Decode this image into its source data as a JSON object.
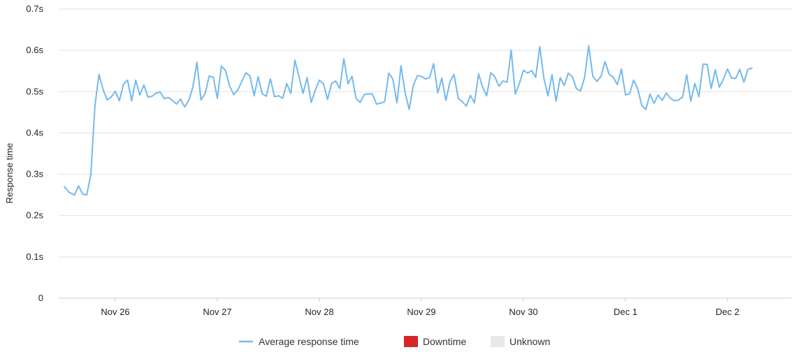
{
  "chart_data": {
    "type": "line",
    "ylabel": "Response time",
    "ylim": [
      0,
      0.7
    ],
    "y_ticks": [
      {
        "value": 0,
        "label": "0"
      },
      {
        "value": 0.1,
        "label": "0.1s"
      },
      {
        "value": 0.2,
        "label": "0.2s"
      },
      {
        "value": 0.3,
        "label": "0.3s"
      },
      {
        "value": 0.4,
        "label": "0.4s"
      },
      {
        "value": 0.5,
        "label": "0.5s"
      },
      {
        "value": 0.6,
        "label": "0.6s"
      },
      {
        "value": 0.7,
        "label": "0.7s"
      }
    ],
    "x_ticks": [
      {
        "day": 0,
        "label": "Nov 26"
      },
      {
        "day": 1,
        "label": "Nov 27"
      },
      {
        "day": 2,
        "label": "Nov 28"
      },
      {
        "day": 3,
        "label": "Nov 29"
      },
      {
        "day": 4,
        "label": "Nov 30"
      },
      {
        "day": 5,
        "label": "Dec 1"
      },
      {
        "day": 6,
        "label": "Dec 2"
      }
    ],
    "xlim": [
      -0.55,
      6.6
    ],
    "grid": true,
    "legend_position": "bottom",
    "series": [
      {
        "name": "Average response time",
        "color": "#74b9ee",
        "points": [
          [
            -0.5,
            0.27
          ],
          [
            -0.45,
            0.256
          ],
          [
            -0.4,
            0.25
          ],
          [
            -0.36,
            0.272
          ],
          [
            -0.32,
            0.252
          ],
          [
            -0.28,
            0.25
          ],
          [
            -0.24,
            0.3
          ],
          [
            -0.2,
            0.465
          ],
          [
            -0.16,
            0.542
          ],
          [
            -0.12,
            0.505
          ],
          [
            -0.08,
            0.48
          ],
          [
            -0.04,
            0.487
          ],
          [
            0.0,
            0.501
          ],
          [
            0.04,
            0.478
          ],
          [
            0.08,
            0.518
          ],
          [
            0.12,
            0.528
          ],
          [
            0.16,
            0.478
          ],
          [
            0.2,
            0.528
          ],
          [
            0.24,
            0.492
          ],
          [
            0.28,
            0.516
          ],
          [
            0.32,
            0.487
          ],
          [
            0.36,
            0.489
          ],
          [
            0.4,
            0.497
          ],
          [
            0.44,
            0.499
          ],
          [
            0.48,
            0.483
          ],
          [
            0.52,
            0.486
          ],
          [
            0.56,
            0.479
          ],
          [
            0.6,
            0.47
          ],
          [
            0.64,
            0.482
          ],
          [
            0.68,
            0.463
          ],
          [
            0.72,
            0.479
          ],
          [
            0.76,
            0.511
          ],
          [
            0.8,
            0.571
          ],
          [
            0.84,
            0.48
          ],
          [
            0.88,
            0.495
          ],
          [
            0.92,
            0.538
          ],
          [
            0.96,
            0.535
          ],
          [
            1.0,
            0.484
          ],
          [
            1.04,
            0.562
          ],
          [
            1.08,
            0.551
          ],
          [
            1.12,
            0.514
          ],
          [
            1.16,
            0.493
          ],
          [
            1.2,
            0.504
          ],
          [
            1.24,
            0.525
          ],
          [
            1.28,
            0.546
          ],
          [
            1.32,
            0.538
          ],
          [
            1.36,
            0.49
          ],
          [
            1.4,
            0.536
          ],
          [
            1.44,
            0.495
          ],
          [
            1.48,
            0.489
          ],
          [
            1.52,
            0.531
          ],
          [
            1.56,
            0.488
          ],
          [
            1.6,
            0.49
          ],
          [
            1.64,
            0.484
          ],
          [
            1.68,
            0.52
          ],
          [
            1.72,
            0.496
          ],
          [
            1.76,
            0.576
          ],
          [
            1.8,
            0.537
          ],
          [
            1.84,
            0.496
          ],
          [
            1.88,
            0.534
          ],
          [
            1.92,
            0.474
          ],
          [
            1.96,
            0.504
          ],
          [
            2.0,
            0.528
          ],
          [
            2.04,
            0.519
          ],
          [
            2.08,
            0.481
          ],
          [
            2.12,
            0.52
          ],
          [
            2.16,
            0.526
          ],
          [
            2.2,
            0.508
          ],
          [
            2.24,
            0.58
          ],
          [
            2.28,
            0.519
          ],
          [
            2.32,
            0.537
          ],
          [
            2.36,
            0.483
          ],
          [
            2.4,
            0.474
          ],
          [
            2.44,
            0.493
          ],
          [
            2.48,
            0.495
          ],
          [
            2.52,
            0.494
          ],
          [
            2.56,
            0.47
          ],
          [
            2.6,
            0.472
          ],
          [
            2.64,
            0.476
          ],
          [
            2.68,
            0.545
          ],
          [
            2.72,
            0.531
          ],
          [
            2.76,
            0.473
          ],
          [
            2.8,
            0.563
          ],
          [
            2.84,
            0.498
          ],
          [
            2.88,
            0.457
          ],
          [
            2.92,
            0.514
          ],
          [
            2.96,
            0.539
          ],
          [
            3.0,
            0.537
          ],
          [
            3.04,
            0.531
          ],
          [
            3.08,
            0.534
          ],
          [
            3.12,
            0.568
          ],
          [
            3.16,
            0.497
          ],
          [
            3.2,
            0.533
          ],
          [
            3.24,
            0.479
          ],
          [
            3.28,
            0.524
          ],
          [
            3.32,
            0.542
          ],
          [
            3.36,
            0.484
          ],
          [
            3.4,
            0.476
          ],
          [
            3.44,
            0.465
          ],
          [
            3.48,
            0.491
          ],
          [
            3.52,
            0.473
          ],
          [
            3.56,
            0.543
          ],
          [
            3.6,
            0.511
          ],
          [
            3.64,
            0.49
          ],
          [
            3.68,
            0.546
          ],
          [
            3.72,
            0.536
          ],
          [
            3.76,
            0.513
          ],
          [
            3.8,
            0.526
          ],
          [
            3.84,
            0.523
          ],
          [
            3.88,
            0.601
          ],
          [
            3.92,
            0.494
          ],
          [
            3.96,
            0.52
          ],
          [
            4.0,
            0.552
          ],
          [
            4.04,
            0.545
          ],
          [
            4.08,
            0.551
          ],
          [
            4.12,
            0.535
          ],
          [
            4.16,
            0.609
          ],
          [
            4.2,
            0.533
          ],
          [
            4.24,
            0.49
          ],
          [
            4.28,
            0.541
          ],
          [
            4.32,
            0.477
          ],
          [
            4.36,
            0.534
          ],
          [
            4.4,
            0.515
          ],
          [
            4.44,
            0.545
          ],
          [
            4.48,
            0.536
          ],
          [
            4.52,
            0.507
          ],
          [
            4.56,
            0.502
          ],
          [
            4.6,
            0.535
          ],
          [
            4.64,
            0.611
          ],
          [
            4.68,
            0.537
          ],
          [
            4.72,
            0.525
          ],
          [
            4.76,
            0.537
          ],
          [
            4.8,
            0.573
          ],
          [
            4.84,
            0.542
          ],
          [
            4.88,
            0.535
          ],
          [
            4.92,
            0.517
          ],
          [
            4.96,
            0.555
          ],
          [
            5.0,
            0.492
          ],
          [
            5.04,
            0.495
          ],
          [
            5.08,
            0.528
          ],
          [
            5.12,
            0.507
          ],
          [
            5.16,
            0.466
          ],
          [
            5.2,
            0.457
          ],
          [
            5.24,
            0.494
          ],
          [
            5.28,
            0.472
          ],
          [
            5.32,
            0.492
          ],
          [
            5.36,
            0.479
          ],
          [
            5.4,
            0.497
          ],
          [
            5.44,
            0.484
          ],
          [
            5.48,
            0.478
          ],
          [
            5.52,
            0.48
          ],
          [
            5.56,
            0.487
          ],
          [
            5.6,
            0.541
          ],
          [
            5.64,
            0.477
          ],
          [
            5.68,
            0.52
          ],
          [
            5.72,
            0.488
          ],
          [
            5.76,
            0.567
          ],
          [
            5.8,
            0.566
          ],
          [
            5.84,
            0.508
          ],
          [
            5.88,
            0.553
          ],
          [
            5.92,
            0.511
          ],
          [
            5.96,
            0.531
          ],
          [
            6.0,
            0.555
          ],
          [
            6.04,
            0.533
          ],
          [
            6.08,
            0.532
          ],
          [
            6.12,
            0.554
          ],
          [
            6.16,
            0.523
          ],
          [
            6.2,
            0.554
          ],
          [
            6.24,
            0.557
          ]
        ]
      }
    ],
    "legend": [
      {
        "label": "Average response time",
        "kind": "line",
        "color": "#74b9ee"
      },
      {
        "label": "Downtime",
        "kind": "box",
        "color": "#d62728"
      },
      {
        "label": "Unknown",
        "kind": "box",
        "color": "#e8e8e8"
      }
    ]
  }
}
